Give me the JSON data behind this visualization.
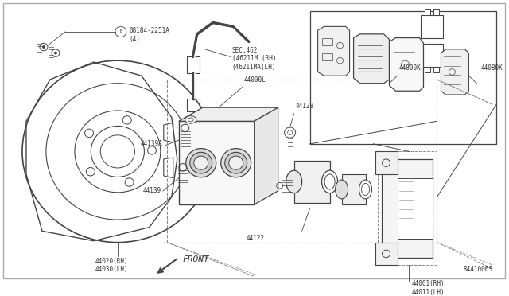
{
  "bg_color": "#ffffff",
  "line_color": "#444444",
  "text_color": "#333333",
  "ref": "R441006S",
  "figsize": [
    6.4,
    3.72
  ],
  "dpi": 100,
  "labels": {
    "bolt_label": "08184-2251A\n(4)",
    "sec462": "SEC.462\n(46211M (RH)\n(46211MA(LH)",
    "l44139A": "44139A",
    "l44128": "44128",
    "l44000L": "44000L",
    "l44139": "44139",
    "l44122": "44122",
    "l44020": "44020(RH)\n44030(LH)",
    "l44000K": "44000K",
    "l44080K": "44080K",
    "l44001": "44001(RH)\n44011(LH)",
    "front": "FRONT"
  }
}
